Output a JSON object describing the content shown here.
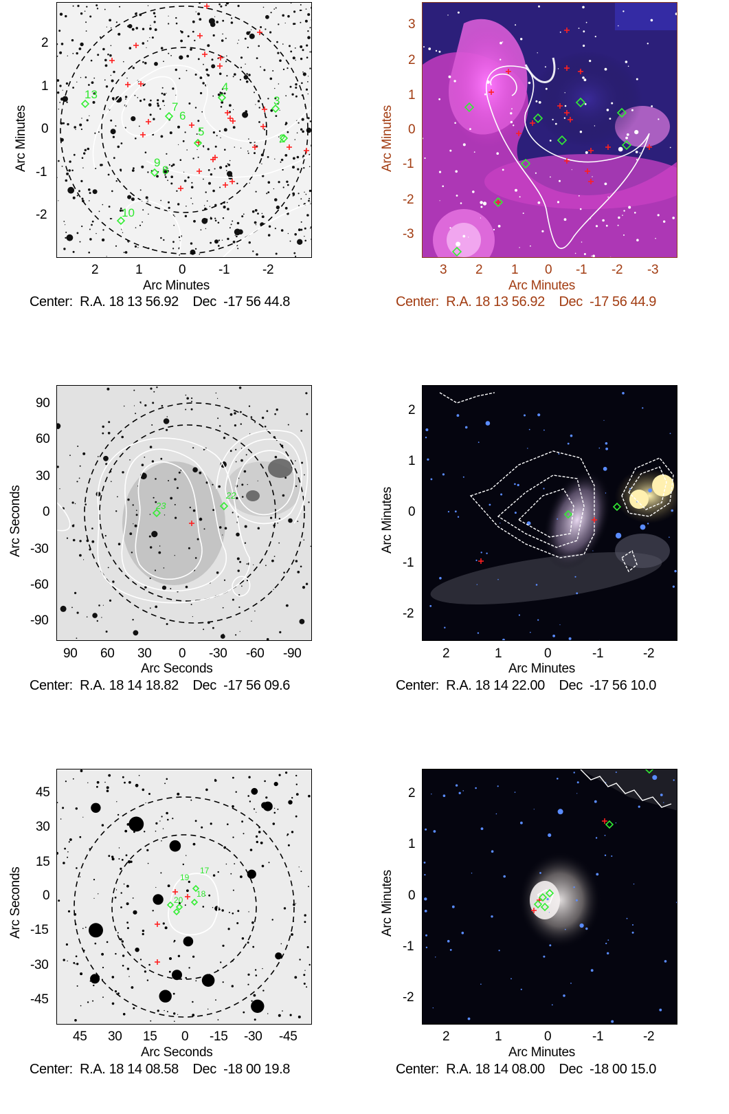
{
  "panels": [
    {
      "id": "p1",
      "style": "grayscale",
      "x_label": "Arc Minutes",
      "y_label": "Arc Minutes",
      "x_ticks": [
        "2",
        "1",
        "0",
        "-1",
        "-2"
      ],
      "y_ticks": [
        "2",
        "1",
        "0",
        "-1",
        "-2"
      ],
      "center_prefix": "Center:",
      "center_ra": "R.A. 18 13 56.92",
      "center_dec": "Dec  -17 56 44.8",
      "source_labels": [
        "13",
        "7",
        "6",
        "4",
        "5",
        "3",
        "2",
        "9",
        "8",
        "10"
      ]
    },
    {
      "id": "p2",
      "style": "color-pink",
      "x_label": "Arc Minutes",
      "y_label": "Arc Minutes",
      "x_ticks": [
        "3",
        "2",
        "1",
        "0",
        "-1",
        "-2",
        "-3"
      ],
      "y_ticks": [
        "3",
        "2",
        "1",
        "0",
        "-1",
        "-2",
        "-3"
      ],
      "center_prefix": "Center:",
      "center_ra": "R.A. 18 13 56.92",
      "center_dec": "Dec  -17 56 44.9",
      "text_color": "#a23c12"
    },
    {
      "id": "p3",
      "style": "grayscale",
      "x_label": "Arc Seconds",
      "y_label": "Arc Seconds",
      "x_ticks": [
        "90",
        "60",
        "30",
        "0",
        "-30",
        "-60",
        "-90"
      ],
      "y_ticks": [
        "90",
        "60",
        "30",
        "0",
        "-30",
        "-60",
        "-90"
      ],
      "center_prefix": "Center:",
      "center_ra": "R.A. 18 14 18.82",
      "center_dec": "Dec  -17 56 09.6",
      "source_labels": [
        "23",
        "22"
      ]
    },
    {
      "id": "p4",
      "style": "color-dark",
      "x_label": "Arc Minutes",
      "y_label": "Arc Minutes",
      "x_ticks": [
        "2",
        "1",
        "0",
        "-1",
        "-2"
      ],
      "y_ticks": [
        "2",
        "1",
        "0",
        "-1",
        "-2"
      ],
      "center_prefix": "Center:",
      "center_ra": "R.A. 18 14 22.00",
      "center_dec": "Dec  -17 56 10.0"
    },
    {
      "id": "p5",
      "style": "grayscale",
      "x_label": "Arc Seconds",
      "y_label": "Arc Seconds",
      "x_ticks": [
        "45",
        "30",
        "15",
        "0",
        "-15",
        "-30",
        "-45"
      ],
      "y_ticks": [
        "45",
        "30",
        "15",
        "0",
        "-15",
        "-30",
        "-45"
      ],
      "center_prefix": "Center:",
      "center_ra": "R.A. 18 14 08.58",
      "center_dec": "Dec  -18 00 19.8",
      "source_labels": [
        "17",
        "19",
        "18",
        "20"
      ]
    },
    {
      "id": "p6",
      "style": "color-dark",
      "x_label": "Arc Minutes",
      "y_label": "Arc Minutes",
      "x_ticks": [
        "2",
        "1",
        "0",
        "-1",
        "-2"
      ],
      "y_ticks": [
        "2",
        "1",
        "0",
        "-1",
        "-2"
      ],
      "center_prefix": "Center:",
      "center_ra": "R.A. 18 14 08.00",
      "center_dec": "Dec  -18 00 15.0"
    }
  ]
}
